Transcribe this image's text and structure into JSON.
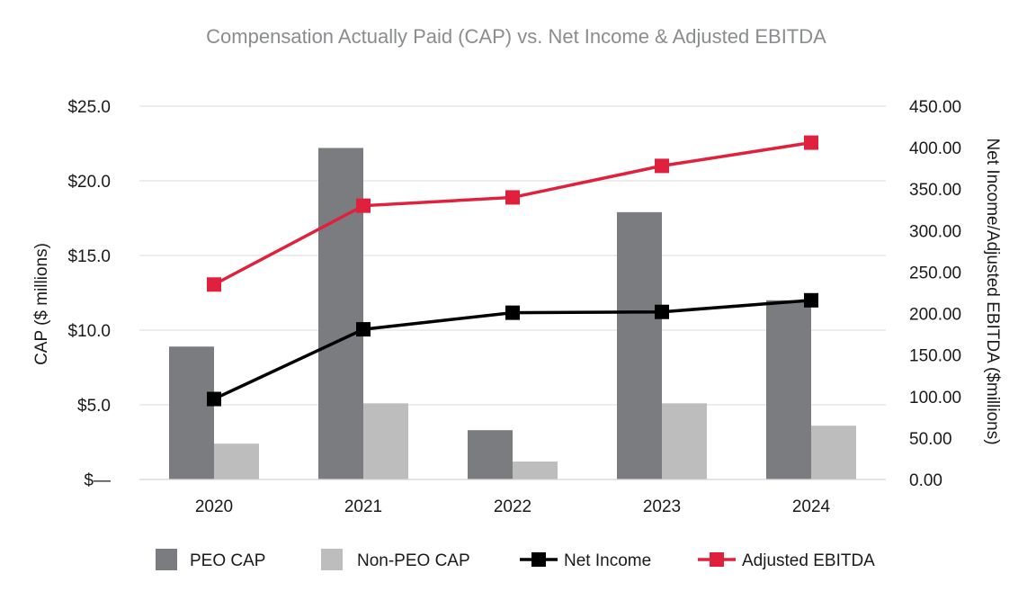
{
  "chart_data": {
    "type": "bar+line",
    "title": "Compensation Actually Paid (CAP) vs. Net Income & Adjusted EBITDA",
    "categories": [
      "2020",
      "2021",
      "2022",
      "2023",
      "2024"
    ],
    "y_left": {
      "label": "CAP ($ millions)",
      "range": [
        0,
        25
      ],
      "ticks": [
        0,
        5,
        10,
        15,
        20,
        25
      ],
      "tick_labels": [
        "$—",
        "$5.0",
        "$10.0",
        "$15.0",
        "$20.0",
        "$25.0"
      ]
    },
    "y_right": {
      "label": "Net Income/Adjusted EBITDA ($millions)",
      "range": [
        0,
        450
      ],
      "ticks": [
        0,
        50,
        100,
        150,
        200,
        250,
        300,
        350,
        400,
        450
      ],
      "tick_labels": [
        "0.00",
        "50.00",
        "100.00",
        "150.00",
        "200.00",
        "250.00",
        "300.00",
        "350.00",
        "400.00",
        "450.00"
      ]
    },
    "series": [
      {
        "name": "PEO CAP",
        "kind": "bar",
        "axis": "left",
        "color": "#7a7c80",
        "values": [
          8.9,
          22.2,
          3.3,
          17.9,
          12.0
        ]
      },
      {
        "name": "Non-PEO CAP",
        "kind": "bar",
        "axis": "left",
        "color": "#bdbdbd",
        "values": [
          2.4,
          5.1,
          1.2,
          5.1,
          3.6
        ]
      },
      {
        "name": "Net Income",
        "kind": "line",
        "axis": "right",
        "color": "#000000",
        "values": [
          97,
          181,
          201,
          202,
          216
        ]
      },
      {
        "name": "Adjusted EBITDA",
        "kind": "line",
        "axis": "right",
        "color": "#e0213d",
        "values": [
          235,
          330,
          340,
          378,
          406
        ]
      }
    ],
    "grid": true,
    "legend_position": "bottom"
  }
}
